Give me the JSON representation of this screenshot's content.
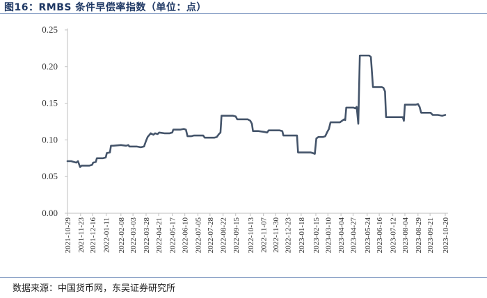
{
  "title": "图16：RMBS 条件早偿率指数（单位：点）",
  "source": "数据来源：中国货币网，东吴证券研究所",
  "colors": {
    "line": "#44546a",
    "axis": "#bfbfbf",
    "title": "#1f3864"
  },
  "chart_data": {
    "type": "line",
    "title": "图16：RMBS 条件早偿率指数（单位：点）",
    "xlabel": "",
    "ylabel": "",
    "ylim": [
      0,
      0.25
    ],
    "yticks": [
      "0.00",
      "0.05",
      "0.10",
      "0.15",
      "0.20",
      "0.25"
    ],
    "grid": false,
    "legend": "none",
    "xticks": [
      "2021-10-29",
      "2021-11-23",
      "2021-12-16",
      "2022-01-11",
      "2022-02-08",
      "2022-03-03",
      "2022-03-28",
      "2022-04-21",
      "2022-05-17",
      "2022-06-10",
      "2022-07-05",
      "2022-07-28",
      "2022-08-22",
      "2022-09-15",
      "2022-10-13",
      "2022-11-07",
      "2022-11-30",
      "2022-12-23",
      "2023-01-18",
      "2023-02-15",
      "2023-03-10",
      "2023-04-04",
      "2023-04-27",
      "2023-05-24",
      "2023-06-16",
      "2023-07-12",
      "2023-08-04",
      "2023-08-29",
      "2023-09-21",
      "2023-10-20"
    ],
    "series": [
      {
        "points": [
          [
            "2021-10-29",
            0.071
          ],
          [
            "2021-11-05",
            0.071
          ],
          [
            "2021-11-10",
            0.07
          ],
          [
            "2021-11-15",
            0.069
          ],
          [
            "2021-11-18",
            0.071
          ],
          [
            "2021-11-22",
            0.063
          ],
          [
            "2021-11-25",
            0.065
          ],
          [
            "2021-12-01",
            0.065
          ],
          [
            "2021-12-10",
            0.065
          ],
          [
            "2021-12-15",
            0.066
          ],
          [
            "2021-12-17",
            0.069
          ],
          [
            "2021-12-22",
            0.07
          ],
          [
            "2021-12-24",
            0.075
          ],
          [
            "2022-01-05",
            0.075
          ],
          [
            "2022-01-10",
            0.076
          ],
          [
            "2022-01-12",
            0.082
          ],
          [
            "2022-01-18",
            0.083
          ],
          [
            "2022-01-20",
            0.092
          ],
          [
            "2022-01-24",
            0.092
          ],
          [
            "2022-02-08",
            0.093
          ],
          [
            "2022-02-18",
            0.092
          ],
          [
            "2022-02-22",
            0.093
          ],
          [
            "2022-02-24",
            0.091
          ],
          [
            "2022-03-10",
            0.091
          ],
          [
            "2022-03-18",
            0.09
          ],
          [
            "2022-03-24",
            0.091
          ],
          [
            "2022-03-28",
            0.099
          ],
          [
            "2022-03-31",
            0.104
          ],
          [
            "2022-04-06",
            0.109
          ],
          [
            "2022-04-11",
            0.107
          ],
          [
            "2022-04-14",
            0.109
          ],
          [
            "2022-04-19",
            0.108
          ],
          [
            "2022-04-22",
            0.11
          ],
          [
            "2022-05-02",
            0.109
          ],
          [
            "2022-05-12",
            0.109
          ],
          [
            "2022-05-17",
            0.11
          ],
          [
            "2022-05-19",
            0.114
          ],
          [
            "2022-06-01",
            0.114
          ],
          [
            "2022-06-08",
            0.115
          ],
          [
            "2022-06-12",
            0.114
          ],
          [
            "2022-06-15",
            0.105
          ],
          [
            "2022-06-22",
            0.105
          ],
          [
            "2022-06-27",
            0.106
          ],
          [
            "2022-07-05",
            0.106
          ],
          [
            "2022-07-15",
            0.106
          ],
          [
            "2022-07-18",
            0.103
          ],
          [
            "2022-07-28",
            0.103
          ],
          [
            "2022-08-05",
            0.103
          ],
          [
            "2022-08-10",
            0.104
          ],
          [
            "2022-08-14",
            0.108
          ],
          [
            "2022-08-17",
            0.11
          ],
          [
            "2022-08-19",
            0.133
          ],
          [
            "2022-08-25",
            0.133
          ],
          [
            "2022-09-10",
            0.133
          ],
          [
            "2022-09-15",
            0.132
          ],
          [
            "2022-09-18",
            0.128
          ],
          [
            "2022-09-28",
            0.128
          ],
          [
            "2022-10-08",
            0.128
          ],
          [
            "2022-10-13",
            0.126
          ],
          [
            "2022-10-16",
            0.122
          ],
          [
            "2022-10-18",
            0.112
          ],
          [
            "2022-10-28",
            0.112
          ],
          [
            "2022-11-08",
            0.111
          ],
          [
            "2022-11-14",
            0.11
          ],
          [
            "2022-11-17",
            0.113
          ],
          [
            "2022-11-28",
            0.113
          ],
          [
            "2022-12-08",
            0.113
          ],
          [
            "2022-12-13",
            0.112
          ],
          [
            "2022-12-15",
            0.106
          ],
          [
            "2022-12-26",
            0.106
          ],
          [
            "2023-01-05",
            0.106
          ],
          [
            "2023-01-10",
            0.106
          ],
          [
            "2023-01-12",
            0.083
          ],
          [
            "2023-01-28",
            0.083
          ],
          [
            "2023-02-05",
            0.083
          ],
          [
            "2023-02-09",
            0.082
          ],
          [
            "2023-02-13",
            0.081
          ],
          [
            "2023-02-16",
            0.102
          ],
          [
            "2023-02-20",
            0.104
          ],
          [
            "2023-03-01",
            0.104
          ],
          [
            "2023-03-05",
            0.105
          ],
          [
            "2023-03-09",
            0.111
          ],
          [
            "2023-03-12",
            0.115
          ],
          [
            "2023-03-15",
            0.124
          ],
          [
            "2023-03-27",
            0.124
          ],
          [
            "2023-04-02",
            0.124
          ],
          [
            "2023-04-06",
            0.126
          ],
          [
            "2023-04-10",
            0.128
          ],
          [
            "2023-04-12",
            0.127
          ],
          [
            "2023-04-14",
            0.144
          ],
          [
            "2023-04-23",
            0.144
          ],
          [
            "2023-04-28",
            0.144
          ],
          [
            "2023-05-01",
            0.143
          ],
          [
            "2023-05-04",
            0.145
          ],
          [
            "2023-05-07",
            0.122
          ],
          [
            "2023-05-10",
            0.215
          ],
          [
            "2023-05-20",
            0.215
          ],
          [
            "2023-05-28",
            0.215
          ],
          [
            "2023-05-31",
            0.213
          ],
          [
            "2023-06-04",
            0.172
          ],
          [
            "2023-06-14",
            0.172
          ],
          [
            "2023-06-21",
            0.172
          ],
          [
            "2023-06-24",
            0.171
          ],
          [
            "2023-06-27",
            0.166
          ],
          [
            "2023-06-29",
            0.131
          ],
          [
            "2023-07-12",
            0.131
          ],
          [
            "2023-07-24",
            0.131
          ],
          [
            "2023-07-31",
            0.131
          ],
          [
            "2023-08-02",
            0.126
          ],
          [
            "2023-08-04",
            0.148
          ],
          [
            "2023-08-15",
            0.148
          ],
          [
            "2023-08-25",
            0.148
          ],
          [
            "2023-08-29",
            0.149
          ],
          [
            "2023-09-01",
            0.145
          ],
          [
            "2023-09-04",
            0.137
          ],
          [
            "2023-09-16",
            0.137
          ],
          [
            "2023-09-22",
            0.137
          ],
          [
            "2023-09-26",
            0.134
          ],
          [
            "2023-10-06",
            0.134
          ],
          [
            "2023-10-14",
            0.133
          ],
          [
            "2023-10-20",
            0.134
          ]
        ]
      }
    ]
  }
}
